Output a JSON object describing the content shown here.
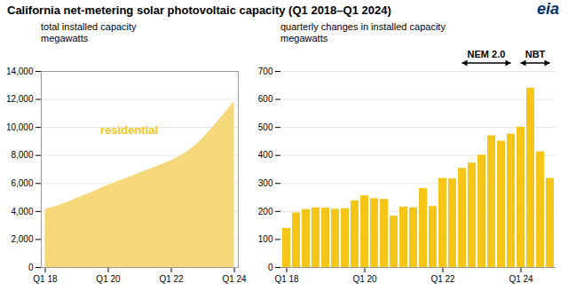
{
  "chart_data": [
    {
      "type": "area",
      "title": "California net-metering solar photovoltaic capacity (Q1 2018–Q1 2024)",
      "ylabel": [
        "total installed capacity",
        "megawatts"
      ],
      "x": [
        0,
        1,
        2,
        3,
        4,
        5,
        6,
        7,
        8,
        9,
        10,
        11,
        12,
        13,
        14,
        15,
        16,
        17,
        18,
        19,
        20,
        21,
        22,
        23,
        24
      ],
      "values": [
        4150,
        4290,
        4480,
        4690,
        4940,
        5170,
        5390,
        5640,
        5870,
        6090,
        6310,
        6530,
        6740,
        6960,
        7180,
        7400,
        7640,
        7920,
        8260,
        8680,
        9230,
        9840,
        10480,
        11170,
        11870
      ],
      "color": "#f5d87a",
      "xlim": [
        -0.5,
        24.5
      ],
      "xticks": [
        {
          "value": 0,
          "label": "Q1 18"
        },
        {
          "value": 8,
          "label": "Q1 20"
        },
        {
          "value": 16,
          "label": "Q1 22"
        },
        {
          "value": 24,
          "label": "Q1 24"
        }
      ],
      "ylim": [
        0,
        14000
      ],
      "yticks": [
        0,
        {
          "value": 2000,
          "label": "2,000"
        },
        {
          "value": 4000,
          "label": "4,000"
        },
        {
          "value": 6000,
          "label": "6,000"
        },
        {
          "value": 8000,
          "label": "8,000"
        },
        {
          "value": 10000,
          "label": "10,000"
        },
        {
          "value": 12000,
          "label": "12,000"
        },
        {
          "value": 14000,
          "label": "14,000"
        }
      ],
      "grid": true,
      "annotations": [
        {
          "text": "residential",
          "color": "#f5c518"
        }
      ]
    },
    {
      "type": "bar",
      "ylabel": [
        "quarterly changes in installed capacity",
        "megawatts"
      ],
      "categories": [
        "Q1 18",
        null,
        null,
        null,
        null,
        null,
        null,
        null,
        "Q1 20",
        null,
        null,
        null,
        null,
        null,
        null,
        null,
        "Q1 22",
        null,
        null,
        null,
        null,
        null,
        null,
        null,
        "Q1 24",
        null,
        null,
        null
      ],
      "values": [
        140,
        195,
        207,
        213,
        212,
        208,
        210,
        238,
        256,
        246,
        243,
        183,
        216,
        213,
        282,
        218,
        318,
        316,
        354,
        373,
        401,
        470,
        451,
        476,
        501,
        640,
        413,
        318
      ],
      "color": "#f5c518",
      "ylim": [
        0,
        700
      ],
      "yticks": [
        0,
        100,
        200,
        300,
        400,
        500,
        600,
        700
      ],
      "grid": true,
      "annotations": [
        {
          "text": "NEM 2.0",
          "x": [
            18,
            23
          ]
        },
        {
          "text": "NBT",
          "x": [
            24,
            27
          ]
        },
        {
          "text": "eia",
          "color": "#003366"
        }
      ]
    }
  ]
}
